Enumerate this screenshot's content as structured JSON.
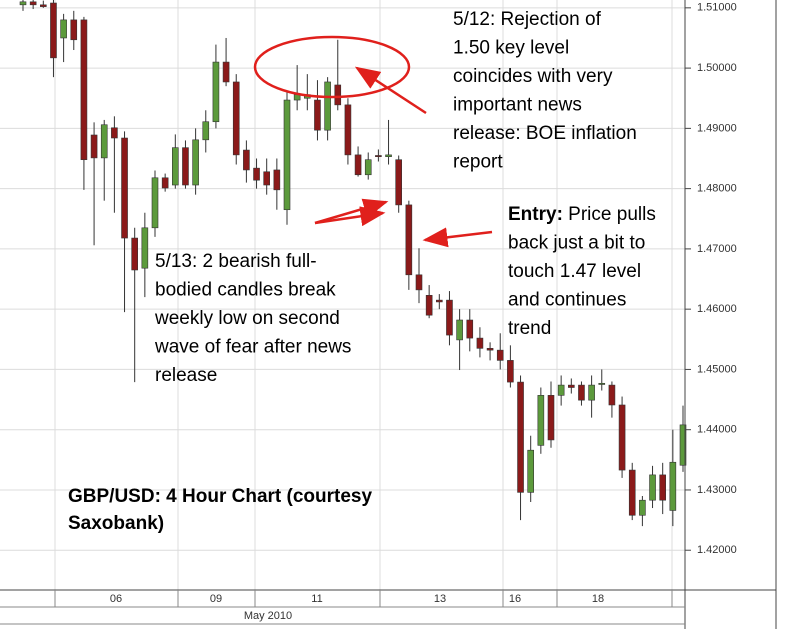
{
  "chart_data": {
    "type": "candlestick",
    "up_color": "#5c9a3c",
    "down_color": "#8b1a1a",
    "grid": true,
    "ylim": [
      1.4134,
      1.5113
    ],
    "yticks": [
      {
        "value": 1.51,
        "label": "1.51000"
      },
      {
        "value": 1.5,
        "label": "1.50000"
      },
      {
        "value": 1.49,
        "label": "1.49000"
      },
      {
        "value": 1.48,
        "label": "1.48000"
      },
      {
        "value": 1.47,
        "label": "1.47000"
      },
      {
        "value": 1.46,
        "label": "1.46000"
      },
      {
        "value": 1.45,
        "label": "1.45000"
      },
      {
        "value": 1.44,
        "label": "1.44000"
      },
      {
        "value": 1.43,
        "label": "1.43000"
      },
      {
        "value": 1.42,
        "label": "1.42000"
      }
    ],
    "xtick_labels": [
      "06",
      "09",
      "11",
      "13",
      "16",
      "18"
    ],
    "month_label": "May 2010",
    "title_lines": [
      "GBP/USD: 4 Hour Chart (courtesy",
      "Saxobank)"
    ],
    "annotations": [
      {
        "lines": [
          "5/12: Rejection of",
          "1.50 key level",
          "coincides with very",
          "important news",
          "release: BOE inflation",
          "report"
        ]
      },
      {
        "lines": [
          "5/13: 2 bearish full-",
          "bodied candles break",
          "weekly low on second",
          "wave of fear after news",
          "release"
        ]
      },
      {
        "label": "Entry:",
        "lines": [
          " Price pulls",
          "back just a bit to",
          "touch 1.47 level",
          "and continues",
          "trend"
        ]
      }
    ],
    "candles": [
      {
        "open": 1.5105,
        "high": 1.512,
        "low": 1.5095,
        "close": 1.511
      },
      {
        "open": 1.511,
        "high": 1.5115,
        "low": 1.5098,
        "close": 1.5105
      },
      {
        "open": 1.5105,
        "high": 1.5112,
        "low": 1.51,
        "close": 1.5102
      },
      {
        "open": 1.5108,
        "high": 1.5115,
        "low": 1.4985,
        "close": 1.5017
      },
      {
        "open": 1.505,
        "high": 1.509,
        "low": 1.501,
        "close": 1.508
      },
      {
        "open": 1.508,
        "high": 1.5095,
        "low": 1.503,
        "close": 1.5047
      },
      {
        "open": 1.508,
        "high": 1.5085,
        "low": 1.4798,
        "close": 1.4848
      },
      {
        "open": 1.4889,
        "high": 1.491,
        "low": 1.4706,
        "close": 1.4851
      },
      {
        "open": 1.4851,
        "high": 1.4914,
        "low": 1.478,
        "close": 1.4906
      },
      {
        "open": 1.4901,
        "high": 1.492,
        "low": 1.476,
        "close": 1.4884
      },
      {
        "open": 1.4884,
        "high": 1.4895,
        "low": 1.4595,
        "close": 1.4718
      },
      {
        "open": 1.4718,
        "high": 1.4735,
        "low": 1.4479,
        "close": 1.4665
      },
      {
        "open": 1.4668,
        "high": 1.476,
        "low": 1.462,
        "close": 1.4735
      },
      {
        "open": 1.4735,
        "high": 1.483,
        "low": 1.472,
        "close": 1.4818
      },
      {
        "open": 1.4818,
        "high": 1.4825,
        "low": 1.4795,
        "close": 1.4801
      },
      {
        "open": 1.4806,
        "high": 1.489,
        "low": 1.48,
        "close": 1.4868
      },
      {
        "open": 1.4868,
        "high": 1.488,
        "low": 1.48,
        "close": 1.4806
      },
      {
        "open": 1.4806,
        "high": 1.49,
        "low": 1.479,
        "close": 1.4881
      },
      {
        "open": 1.4881,
        "high": 1.493,
        "low": 1.486,
        "close": 1.4911
      },
      {
        "open": 1.4911,
        "high": 1.5039,
        "low": 1.49,
        "close": 1.501
      },
      {
        "open": 1.501,
        "high": 1.505,
        "low": 1.497,
        "close": 1.4977
      },
      {
        "open": 1.4977,
        "high": 1.499,
        "low": 1.484,
        "close": 1.4856
      },
      {
        "open": 1.4864,
        "high": 1.488,
        "low": 1.481,
        "close": 1.4831
      },
      {
        "open": 1.4834,
        "high": 1.485,
        "low": 1.48,
        "close": 1.4814
      },
      {
        "open": 1.4828,
        "high": 1.485,
        "low": 1.479,
        "close": 1.4806
      },
      {
        "open": 1.4831,
        "high": 1.485,
        "low": 1.4765,
        "close": 1.4798
      },
      {
        "open": 1.4765,
        "high": 1.496,
        "low": 1.474,
        "close": 1.4947
      },
      {
        "open": 1.4947,
        "high": 1.5005,
        "low": 1.493,
        "close": 1.4956
      },
      {
        "open": 1.495,
        "high": 1.499,
        "low": 1.493,
        "close": 1.4956
      },
      {
        "open": 1.4947,
        "high": 1.498,
        "low": 1.488,
        "close": 1.4897
      },
      {
        "open": 1.4897,
        "high": 1.4985,
        "low": 1.488,
        "close": 1.4977
      },
      {
        "open": 1.4972,
        "high": 1.5047,
        "low": 1.493,
        "close": 1.4939
      },
      {
        "open": 1.4939,
        "high": 1.495,
        "low": 1.484,
        "close": 1.4856
      },
      {
        "open": 1.4856,
        "high": 1.487,
        "low": 1.482,
        "close": 1.4823
      },
      {
        "open": 1.4823,
        "high": 1.486,
        "low": 1.4815,
        "close": 1.4848
      },
      {
        "open": 1.4855,
        "high": 1.4865,
        "low": 1.4845,
        "close": 1.4853
      },
      {
        "open": 1.4853,
        "high": 1.4914,
        "low": 1.484,
        "close": 1.4856
      },
      {
        "open": 1.4848,
        "high": 1.4855,
        "low": 1.476,
        "close": 1.4773
      },
      {
        "open": 1.4773,
        "high": 1.478,
        "low": 1.4632,
        "close": 1.4657
      },
      {
        "open": 1.4657,
        "high": 1.4701,
        "low": 1.461,
        "close": 1.4632
      },
      {
        "open": 1.4623,
        "high": 1.464,
        "low": 1.4585,
        "close": 1.459
      },
      {
        "open": 1.4615,
        "high": 1.4625,
        "low": 1.46,
        "close": 1.4612
      },
      {
        "open": 1.4615,
        "high": 1.463,
        "low": 1.454,
        "close": 1.4557
      },
      {
        "open": 1.4549,
        "high": 1.46,
        "low": 1.4499,
        "close": 1.4582
      },
      {
        "open": 1.4582,
        "high": 1.46,
        "low": 1.453,
        "close": 1.4552
      },
      {
        "open": 1.4552,
        "high": 1.457,
        "low": 1.452,
        "close": 1.4535
      },
      {
        "open": 1.4535,
        "high": 1.4545,
        "low": 1.4515,
        "close": 1.4532
      },
      {
        "open": 1.4532,
        "high": 1.456,
        "low": 1.45,
        "close": 1.4515
      },
      {
        "open": 1.4515,
        "high": 1.454,
        "low": 1.447,
        "close": 1.4479
      },
      {
        "open": 1.4479,
        "high": 1.449,
        "low": 1.425,
        "close": 1.4296
      },
      {
        "open": 1.4296,
        "high": 1.439,
        "low": 1.428,
        "close": 1.4366
      },
      {
        "open": 1.4374,
        "high": 1.447,
        "low": 1.436,
        "close": 1.4457
      },
      {
        "open": 1.4457,
        "high": 1.448,
        "low": 1.437,
        "close": 1.4383
      },
      {
        "open": 1.4457,
        "high": 1.449,
        "low": 1.444,
        "close": 1.4474
      },
      {
        "open": 1.4474,
        "high": 1.4485,
        "low": 1.446,
        "close": 1.447
      },
      {
        "open": 1.4474,
        "high": 1.448,
        "low": 1.444,
        "close": 1.4449
      },
      {
        "open": 1.4449,
        "high": 1.449,
        "low": 1.442,
        "close": 1.4474
      },
      {
        "open": 1.4475,
        "high": 1.45,
        "low": 1.4465,
        "close": 1.4477
      },
      {
        "open": 1.4474,
        "high": 1.448,
        "low": 1.442,
        "close": 1.4441
      },
      {
        "open": 1.4441,
        "high": 1.4455,
        "low": 1.432,
        "close": 1.4333
      },
      {
        "open": 1.4333,
        "high": 1.4345,
        "low": 1.425,
        "close": 1.4258
      },
      {
        "open": 1.4258,
        "high": 1.429,
        "low": 1.424,
        "close": 1.4283
      },
      {
        "open": 1.4283,
        "high": 1.434,
        "low": 1.427,
        "close": 1.4325
      },
      {
        "open": 1.4325,
        "high": 1.4345,
        "low": 1.426,
        "close": 1.4283
      },
      {
        "open": 1.4266,
        "high": 1.44,
        "low": 1.424,
        "close": 1.4346
      },
      {
        "open": 1.4341,
        "high": 1.444,
        "low": 1.433,
        "close": 1.4408
      }
    ]
  }
}
